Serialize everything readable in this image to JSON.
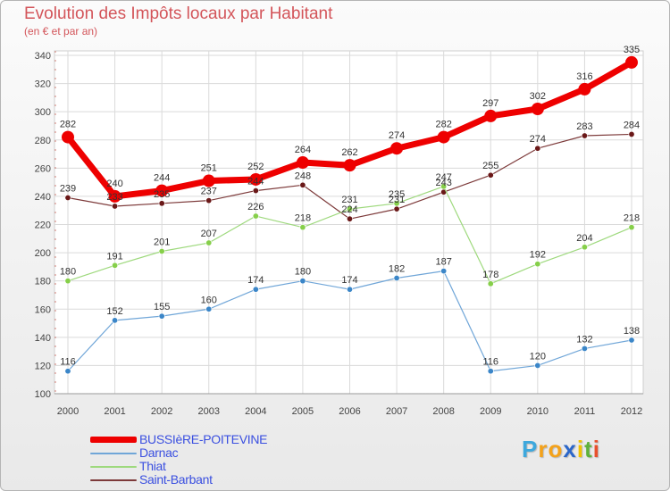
{
  "title": "Evolution des Impôts locaux par Habitant",
  "subtitle": "(en € et par an)",
  "logo": {
    "letters": [
      "P",
      "r",
      "o",
      "x",
      "i",
      "t",
      "i"
    ],
    "colors": [
      "#3ea8dd",
      "#f4a21a",
      "#f4a21a",
      "#2b66c9",
      "#f2c200",
      "#5fb13b",
      "#e8502d"
    ]
  },
  "chart_data": {
    "type": "line",
    "title": "Evolution des Impôts locaux par Habitant",
    "subtitle": "(en € et par an)",
    "xlabel": "",
    "ylabel": "",
    "x": [
      "2000",
      "2001",
      "2002",
      "2003",
      "2004",
      "2005",
      "2006",
      "2007",
      "2008",
      "2009",
      "2010",
      "2011",
      "2012"
    ],
    "ylim": [
      100,
      340
    ],
    "yticks": [
      "100",
      "120",
      "140",
      "160",
      "180",
      "200",
      "220",
      "240",
      "260",
      "280",
      "300",
      "320",
      "340"
    ],
    "grid": true,
    "legend": "bottom-left",
    "series": [
      {
        "name": "BUSSIèRE-POITEVINE",
        "color": "#ee0000",
        "marker": "#ee0000",
        "values": [
          282,
          240,
          244,
          251,
          252,
          264,
          262,
          274,
          282,
          297,
          302,
          316,
          335
        ],
        "labels": [
          "282",
          "240",
          "244",
          "251",
          "252",
          "264",
          "262",
          "274",
          "282",
          "297",
          "302",
          "316",
          "335"
        ]
      },
      {
        "name": "Darnac",
        "color": "#70a6d8",
        "marker": "#3b86c8",
        "values": [
          116,
          152,
          155,
          160,
          174,
          180,
          174,
          182,
          187,
          116,
          120,
          132,
          138
        ],
        "labels": [
          "116",
          "152",
          "155",
          "160",
          "174",
          "180",
          "174",
          "182",
          "187",
          "116",
          "120",
          "132",
          "138"
        ]
      },
      {
        "name": "Thiat",
        "color": "#9ed97d",
        "marker": "#86cf4a",
        "values": [
          180,
          191,
          201,
          207,
          226,
          218,
          231,
          235,
          247,
          178,
          192,
          204,
          218
        ],
        "labels": [
          "180",
          "191",
          "201",
          "207",
          "226",
          "218",
          "231",
          "235",
          "247",
          "178",
          "192",
          "204",
          "218"
        ]
      },
      {
        "name": "Saint-Barbant",
        "color": "#7d3a3a",
        "marker": "#6a1818",
        "values": [
          239,
          233,
          235,
          237,
          244,
          248,
          224,
          231,
          243,
          255,
          274,
          283,
          284
        ],
        "labels": [
          "239",
          "233",
          "235",
          "237",
          "244",
          "248",
          "224",
          "231",
          "243",
          "255",
          "274",
          "283",
          "284"
        ]
      }
    ]
  }
}
